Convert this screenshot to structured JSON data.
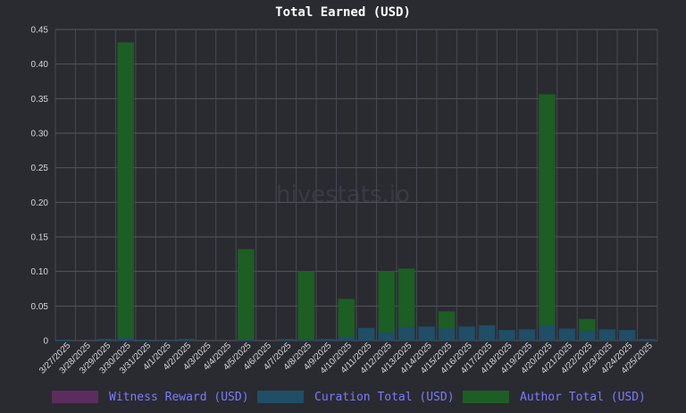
{
  "chart_data": {
    "type": "bar",
    "stacked": true,
    "title": "Total Earned (USD)",
    "watermark": "hivestats.io",
    "ylim": [
      0,
      0.45
    ],
    "yticks": [
      "0",
      "0.05",
      "0.10",
      "0.15",
      "0.20",
      "0.25",
      "0.30",
      "0.35",
      "0.40",
      "0.45"
    ],
    "ytick_values": [
      0,
      0.05,
      0.1,
      0.15,
      0.2,
      0.25,
      0.3,
      0.35,
      0.4,
      0.45
    ],
    "categories": [
      "3/27/2025",
      "3/28/2025",
      "3/29/2025",
      "3/30/2025",
      "3/31/2025",
      "4/1/2025",
      "4/2/2025",
      "4/3/2025",
      "4/4/2025",
      "4/5/2025",
      "4/6/2025",
      "4/7/2025",
      "4/8/2025",
      "4/9/2025",
      "4/10/2025",
      "4/11/2025",
      "4/12/2025",
      "4/13/2025",
      "4/14/2025",
      "4/15/2025",
      "4/16/2025",
      "4/17/2025",
      "4/18/2025",
      "4/19/2025",
      "4/20/2025",
      "4/21/2025",
      "4/22/2025",
      "4/23/2025",
      "4/24/2025",
      "4/25/2025"
    ],
    "series": [
      {
        "name": "Witness Reward (USD)",
        "color": "#5a2d5e",
        "values": [
          0,
          0,
          0,
          0,
          0,
          0,
          0,
          0,
          0,
          0,
          0,
          0,
          0,
          0,
          0,
          0,
          0,
          0,
          0,
          0,
          0,
          0,
          0,
          0,
          0,
          0,
          0,
          0,
          0,
          0
        ]
      },
      {
        "name": "Curation Total (USD)",
        "color": "#1f4e66",
        "values": [
          0.001,
          0,
          0.002,
          0.004,
          0.001,
          0.001,
          0.002,
          0,
          0,
          0.002,
          0,
          0.002,
          0.002,
          0.002,
          0.006,
          0.018,
          0.012,
          0.02,
          0.02,
          0.018,
          0.02,
          0.022,
          0.015,
          0.016,
          0.022,
          0.017,
          0.014,
          0.016,
          0.015,
          0.002
        ]
      },
      {
        "name": "Author Total (USD)",
        "color": "#1c5e24",
        "values": [
          0,
          0,
          0,
          0.427,
          0,
          0,
          0,
          0,
          0,
          0.13,
          0,
          0,
          0.098,
          0,
          0.054,
          0,
          0.088,
          0.084,
          0,
          0.024,
          0,
          0,
          0,
          0,
          0.334,
          0,
          0.017,
          0,
          0,
          0
        ]
      }
    ],
    "legend_position": "bottom"
  }
}
